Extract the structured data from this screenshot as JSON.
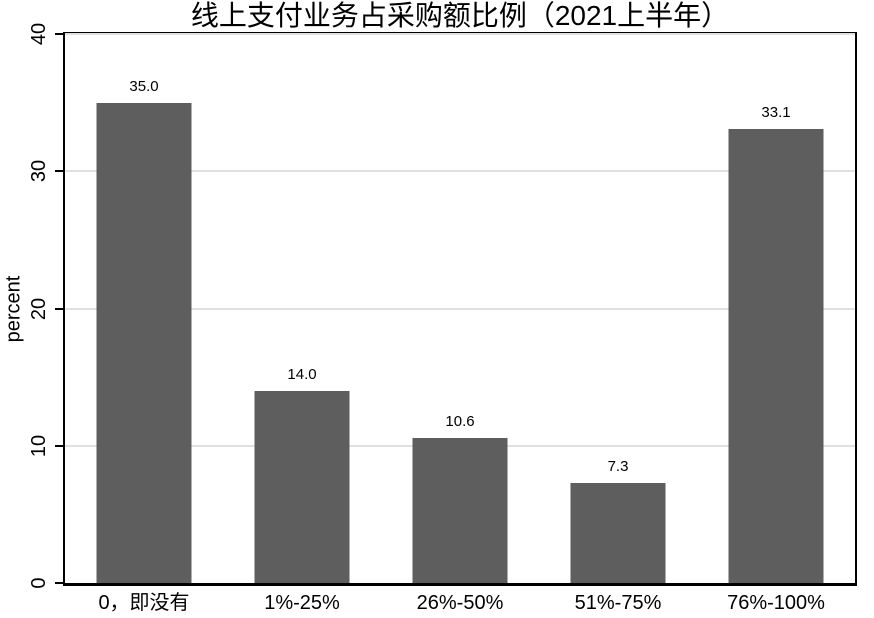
{
  "chart_data": {
    "type": "bar",
    "title": "线上支付业务占采购额比例（2021上半年）",
    "ylabel": "percent",
    "xlabel": "",
    "categories": [
      "0，即没有",
      "1%-25%",
      "26%-50%",
      "51%-75%",
      "76%-100%"
    ],
    "values": [
      35.0,
      14.0,
      10.6,
      7.3,
      33.1
    ],
    "value_labels": [
      "35.0",
      "14.0",
      "10.6",
      "7.3",
      "33.1"
    ],
    "yticks": [
      0,
      10,
      20,
      30,
      40
    ],
    "ylim": [
      0,
      40
    ],
    "grid": true,
    "legend_position": "none",
    "colors": {
      "bar": "#5e5e5e",
      "gridline": "#e0e0e0",
      "axis": "#000000",
      "background": "#ffffff",
      "text": "#000000"
    }
  }
}
